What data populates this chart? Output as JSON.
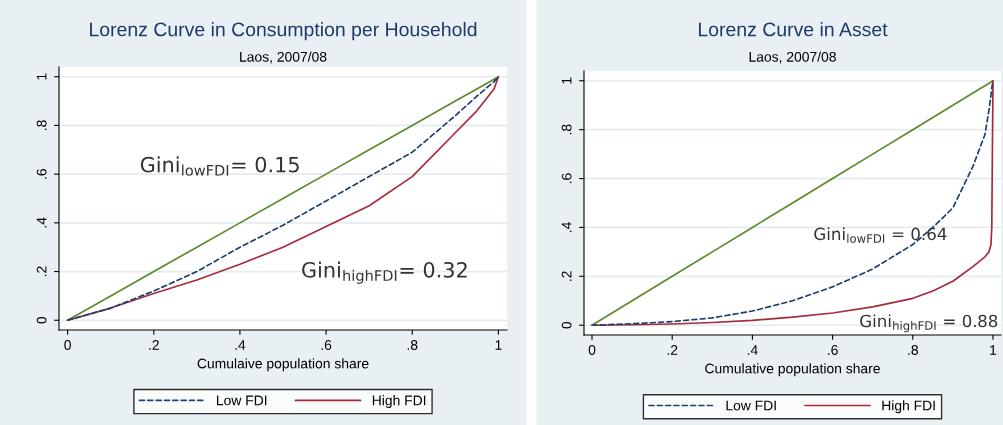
{
  "chart_data": [
    {
      "type": "line",
      "title": "Lorenz Curve in Consumption per Household",
      "subtitle": "Laos, 2007/08",
      "xlabel": "Cumulaive population share",
      "x": [
        0,
        0.1,
        0.2,
        0.3,
        0.4,
        0.5,
        0.6,
        0.7,
        0.8,
        0.9,
        0.95,
        0.99,
        1
      ],
      "series": [
        {
          "color": "#5b8a2d",
          "line_style": "solid",
          "values": [
            0,
            0.1,
            0.2,
            0.3,
            0.4,
            0.5,
            0.6,
            0.7,
            0.8,
            0.9,
            0.95,
            0.99,
            1
          ]
        },
        {
          "name": "Low FDI",
          "color": "#1b3f6e",
          "line_style": "dashed",
          "values": [
            0,
            0.05,
            0.12,
            0.2,
            0.3,
            0.39,
            0.49,
            0.59,
            0.69,
            0.84,
            0.92,
            0.98,
            1
          ]
        },
        {
          "name": "High FDI",
          "color": "#a52a3a",
          "line_style": "solid",
          "values": [
            0,
            0.05,
            0.11,
            0.165,
            0.23,
            0.3,
            0.385,
            0.47,
            0.59,
            0.77,
            0.86,
            0.95,
            1
          ]
        }
      ],
      "annotations": [
        "Gini$_{lowFDI}$= 0.15",
        "Gini$_{highFDI}$= 0.32"
      ],
      "xlim": [
        -0.02,
        1.02
      ],
      "ylim": [
        -0.04,
        1.04
      ],
      "xticks": [
        0,
        {
          "value": 0.2,
          "label": ".2"
        },
        {
          "value": 0.4,
          "label": ".4"
        },
        {
          "value": 0.6,
          "label": ".6"
        },
        {
          "value": 0.8,
          "label": ".8"
        },
        1
      ],
      "yticks": [
        0,
        {
          "value": 0.2,
          "label": ".2"
        },
        {
          "value": 0.4,
          "label": ".4"
        },
        {
          "value": 0.6,
          "label": ".6"
        },
        {
          "value": 0.8,
          "label": ".8"
        },
        1
      ],
      "grid": "y",
      "legend": "bottom",
      "marker": "none"
    },
    {
      "type": "line",
      "title": "Lorenz Curve in Asset",
      "subtitle": "Laos, 2007/08",
      "xlabel": "Cumulative population share",
      "x": [
        0,
        0.1,
        0.2,
        0.3,
        0.4,
        0.5,
        0.6,
        0.7,
        0.8,
        0.85,
        0.9,
        0.95,
        0.98,
        0.99,
        0.995,
        0.997,
        1
      ],
      "series": [
        {
          "color": "#5b8a2d",
          "line_style": "solid",
          "values": [
            0,
            0.1,
            0.2,
            0.3,
            0.4,
            0.5,
            0.6,
            0.7,
            0.8,
            0.85,
            0.9,
            0.95,
            0.98,
            0.99,
            0.995,
            0.997,
            1
          ]
        },
        {
          "name": "Low FDI",
          "color": "#1b3f6e",
          "line_style": "dashed",
          "values": [
            0,
            0.006,
            0.015,
            0.03,
            0.058,
            0.1,
            0.157,
            0.23,
            0.33,
            0.4,
            0.48,
            0.65,
            0.78,
            0.88,
            0.94,
            0.97,
            1
          ]
        },
        {
          "name": "High FDI",
          "color": "#a52a3a",
          "line_style": "solid",
          "values": [
            0,
            0.002,
            0.005,
            0.011,
            0.02,
            0.033,
            0.05,
            0.075,
            0.11,
            0.14,
            0.18,
            0.24,
            0.28,
            0.3,
            0.33,
            0.4,
            1
          ]
        }
      ],
      "annotations": [
        "Gini$_{lowFDI}$ = 0.64",
        "Gini$_{highFDI}$ = 0.88"
      ],
      "xlim": [
        -0.02,
        1.02
      ],
      "ylim": [
        -0.04,
        1.04
      ],
      "xticks": [
        0,
        {
          "value": 0.2,
          "label": ".2"
        },
        {
          "value": 0.4,
          "label": ".4"
        },
        {
          "value": 0.6,
          "label": ".6"
        },
        {
          "value": 0.8,
          "label": ".8"
        },
        1
      ],
      "yticks": [
        0,
        {
          "value": 0.2,
          "label": ".2"
        },
        {
          "value": 0.4,
          "label": ".4"
        },
        {
          "value": 0.6,
          "label": ".6"
        },
        {
          "value": 0.8,
          "label": ".8"
        },
        1
      ],
      "grid": "y",
      "legend": "bottom",
      "marker": "none"
    }
  ]
}
